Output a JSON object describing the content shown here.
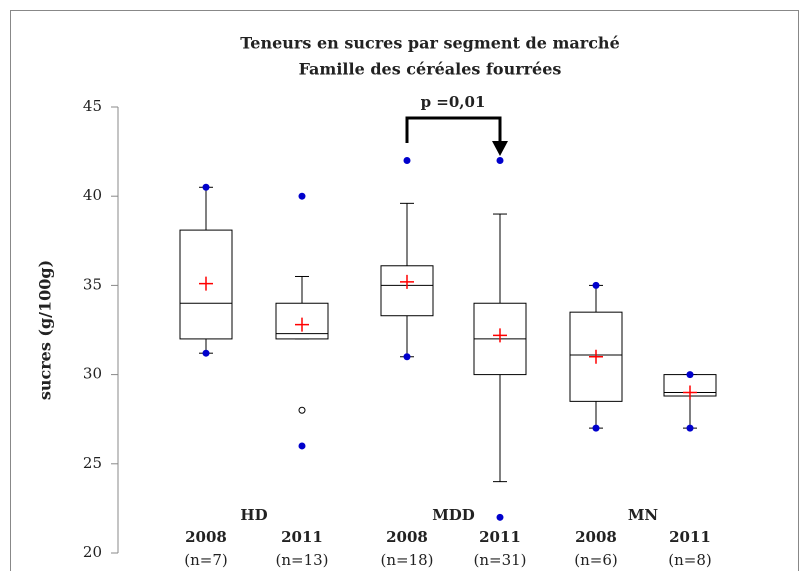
{
  "chart_data": {
    "type": "box",
    "title": "Teneurs en sucres par segment de marché",
    "subtitle": "Famille des céréales fourrées",
    "ylabel": "sucres (g/100g)",
    "ylim": [
      20,
      45
    ],
    "yticks": [
      20,
      25,
      30,
      35,
      40,
      45
    ],
    "annotation": "p =0,01",
    "groups": [
      "HD",
      "MDD",
      "MN"
    ],
    "categories": [
      "2008",
      "2011",
      "2008",
      "2011",
      "2008",
      "2011"
    ],
    "counts": [
      "(n=7)",
      "(n=13)",
      "(n=18)",
      "(n=31)",
      "(n=6)",
      "(n=8)"
    ],
    "box_color": "#000000",
    "mean_color": "#ff0000",
    "outlier_color": "#0000cc",
    "boxes": [
      {
        "whisker_low": 31.2,
        "q1": 32,
        "median": 34,
        "q3": 38.1,
        "whisker_high": 40.5,
        "mean": 35.1,
        "outliers": [
          40.5,
          31.2
        ],
        "open_outliers": []
      },
      {
        "whisker_low": 32,
        "q1": 32,
        "median": 32.3,
        "q3": 34,
        "whisker_high": 35.5,
        "mean": 32.8,
        "outliers": [
          40,
          26
        ],
        "open_outliers": [
          28
        ]
      },
      {
        "whisker_low": 31,
        "q1": 33.3,
        "median": 35,
        "q3": 36.1,
        "whisker_high": 39.6,
        "mean": 35.2,
        "outliers": [
          42,
          31
        ],
        "open_outliers": []
      },
      {
        "whisker_low": 24,
        "q1": 30,
        "median": 32,
        "q3": 34,
        "whisker_high": 39,
        "mean": 32.2,
        "outliers": [
          42,
          22
        ],
        "open_outliers": []
      },
      {
        "whisker_low": 27,
        "q1": 28.5,
        "median": 31.1,
        "q3": 33.5,
        "whisker_high": 35,
        "mean": 31,
        "outliers": [
          35,
          27
        ],
        "open_outliers": []
      },
      {
        "whisker_low": 27,
        "q1": 28.8,
        "median": 29,
        "q3": 30,
        "whisker_high": 30,
        "mean": 29,
        "outliers": [
          30,
          27
        ],
        "open_outliers": []
      }
    ]
  }
}
